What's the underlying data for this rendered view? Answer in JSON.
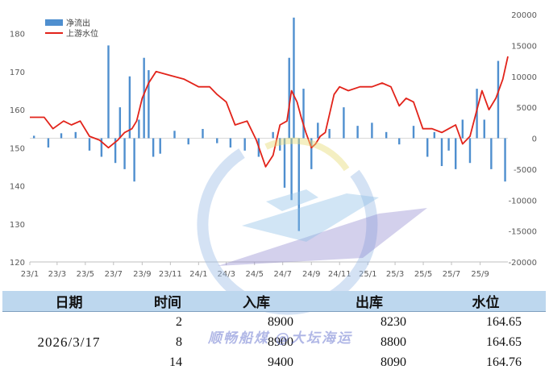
{
  "chart_data": {
    "type": "bar+line",
    "legend": [
      "净流出",
      "上游水位"
    ],
    "legend_position": "top-left",
    "colors": {
      "bars": "#4f8fcf",
      "line": "#e2231a"
    },
    "y_left": {
      "ylim": [
        120,
        185
      ],
      "ticks": [
        "120",
        "130",
        "140",
        "150",
        "160",
        "170",
        "180"
      ]
    },
    "y_right": {
      "ylim": [
        -20000,
        20000
      ],
      "ticks": [
        "-20000",
        "-15000",
        "-10000",
        "-5000",
        "0",
        "5000",
        "10000",
        "15000",
        "20000"
      ]
    },
    "x_ticks": [
      "23/1",
      "23/3",
      "23/5",
      "23/7",
      "23/9",
      "23/11",
      "24/1",
      "24/3",
      "24/5",
      "24/7",
      "24/9",
      "24/11",
      "25/1",
      "25/3",
      "25/5",
      "25/7",
      "25/9"
    ],
    "x_range": [
      "2023-01-01",
      "2025-10-31"
    ],
    "grid": false,
    "series": [
      {
        "name": "上游水位",
        "kind": "line",
        "axis": "left",
        "x": [
          "2023-01-01",
          "2023-02-01",
          "2023-02-20",
          "2023-03-15",
          "2023-04-01",
          "2023-04-20",
          "2023-05-10",
          "2023-06-01",
          "2023-06-20",
          "2023-07-10",
          "2023-07-25",
          "2023-08-10",
          "2023-08-20",
          "2023-09-01",
          "2023-09-15",
          "2023-10-01",
          "2023-11-01",
          "2023-12-01",
          "2024-01-01",
          "2024-01-25",
          "2024-02-10",
          "2024-03-01",
          "2024-03-20",
          "2024-04-15",
          "2024-05-05",
          "2024-05-25",
          "2024-06-10",
          "2024-06-25",
          "2024-07-10",
          "2024-07-20",
          "2024-08-01",
          "2024-08-10",
          "2024-08-20",
          "2024-09-01",
          "2024-09-10",
          "2024-09-20",
          "2024-10-01",
          "2024-10-20",
          "2024-11-01",
          "2024-11-20",
          "2024-12-15",
          "2025-01-10",
          "2025-02-01",
          "2025-02-20",
          "2025-03-10",
          "2025-03-25",
          "2025-04-10",
          "2025-04-30",
          "2025-05-20",
          "2025-06-10",
          "2025-06-25",
          "2025-07-10",
          "2025-07-25",
          "2025-08-10",
          "2025-08-25",
          "2025-09-05",
          "2025-09-20",
          "2025-10-05",
          "2025-10-20",
          "2025-10-31"
        ],
        "values": [
          158,
          158,
          155,
          157,
          156,
          157,
          153,
          152,
          150,
          152,
          154,
          155,
          157,
          163,
          167,
          170,
          169,
          168,
          166,
          166,
          164,
          162,
          156,
          157,
          152,
          145,
          148,
          156,
          157,
          165,
          162,
          158,
          154,
          150,
          151,
          153,
          154,
          164,
          166,
          165,
          166,
          166,
          167,
          166,
          161,
          163,
          162,
          155,
          155,
          154,
          155,
          156,
          151,
          153,
          160,
          165,
          160,
          163,
          168,
          174
        ]
      },
      {
        "name": "净流出",
        "kind": "bar",
        "axis": "right",
        "x": [
          "2023-01-10",
          "2023-02-10",
          "2023-03-10",
          "2023-04-10",
          "2023-05-10",
          "2023-06-05",
          "2023-06-20",
          "2023-07-05",
          "2023-07-15",
          "2023-07-25",
          "2023-08-05",
          "2023-08-15",
          "2023-08-25",
          "2023-09-05",
          "2023-09-15",
          "2023-09-25",
          "2023-10-10",
          "2023-11-10",
          "2023-12-10",
          "2024-01-10",
          "2024-02-10",
          "2024-03-10",
          "2024-04-10",
          "2024-05-10",
          "2024-06-10",
          "2024-06-25",
          "2024-07-05",
          "2024-07-15",
          "2024-07-20",
          "2024-07-25",
          "2024-08-05",
          "2024-08-15",
          "2024-09-01",
          "2024-09-15",
          "2024-10-10",
          "2024-11-10",
          "2024-12-10",
          "2025-01-10",
          "2025-02-10",
          "2025-03-10",
          "2025-04-10",
          "2025-05-10",
          "2025-05-25",
          "2025-06-10",
          "2025-06-25",
          "2025-07-10",
          "2025-07-25",
          "2025-08-10",
          "2025-08-25",
          "2025-09-10",
          "2025-09-25",
          "2025-10-10",
          "2025-10-25"
        ],
        "values": [
          400,
          -1500,
          800,
          1000,
          -2000,
          -3000,
          15000,
          -4000,
          5000,
          -5000,
          10000,
          -7000,
          3000,
          13000,
          11000,
          -3000,
          -2500,
          1200,
          -1000,
          1500,
          -800,
          -1500,
          -2000,
          -3000,
          1000,
          -2000,
          -8000,
          13000,
          -10000,
          19500,
          -15000,
          8000,
          -5000,
          2500,
          1500,
          5000,
          2000,
          2500,
          1000,
          -1000,
          2000,
          -3000,
          1000,
          -4500,
          -2000,
          -5000,
          3000,
          -4000,
          8000,
          3000,
          -5000,
          12500,
          -7000
        ]
      }
    ]
  },
  "table": {
    "headers": [
      "日期",
      "时间",
      "入库",
      "出库",
      "水位"
    ],
    "date": "2026/3/17",
    "rows": [
      {
        "time": "2",
        "inflow": "8900",
        "outflow": "8230",
        "level": "164.65"
      },
      {
        "time": "8",
        "inflow": "8900",
        "outflow": "8800",
        "level": "164.65"
      },
      {
        "time": "14",
        "inflow": "9400",
        "outflow": "8090",
        "level": "164.76"
      }
    ]
  },
  "watermark": {
    "text": "顺畅船煤 @大坛海运"
  }
}
